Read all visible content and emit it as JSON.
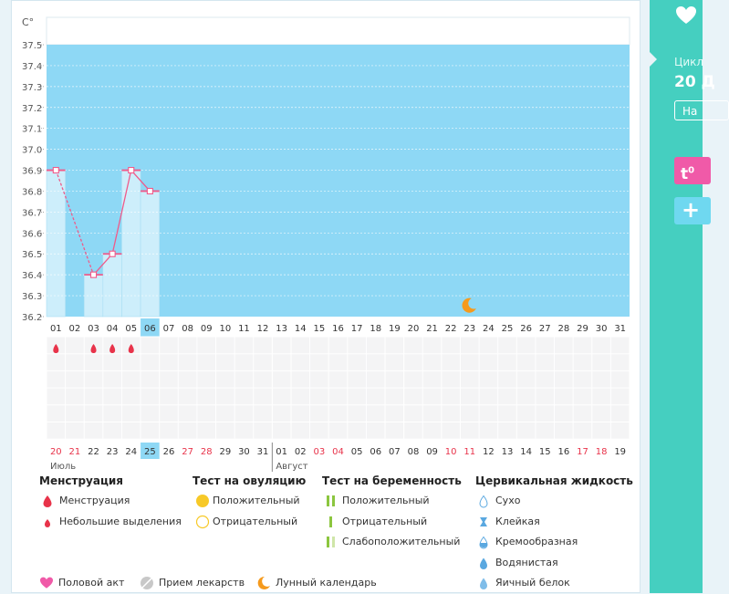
{
  "chart_data": {
    "type": "line",
    "ylabel": "C°",
    "ylim": [
      36.2,
      37.5
    ],
    "y_ticks": [
      "37.5",
      "37.4",
      "37.3",
      "37.2",
      "37.1",
      "37.0",
      "36.9",
      "36.8",
      "36.7",
      "36.6",
      "36.5",
      "36.4",
      "36.3",
      "36.2"
    ],
    "cycle_days": [
      "01",
      "02",
      "03",
      "04",
      "05",
      "06",
      "07",
      "08",
      "09",
      "10",
      "11",
      "12",
      "13",
      "14",
      "15",
      "16",
      "17",
      "18",
      "19",
      "20",
      "21",
      "22",
      "23",
      "24",
      "25",
      "26",
      "27",
      "28",
      "29",
      "30",
      "31"
    ],
    "current_day": "06",
    "temperatures": [
      {
        "day": 1,
        "value": 36.9
      },
      {
        "day": 3,
        "value": 36.4
      },
      {
        "day": 4,
        "value": 36.5
      },
      {
        "day": 5,
        "value": 36.9
      },
      {
        "day": 6,
        "value": 36.8
      }
    ],
    "temperature_links": [
      {
        "from": 1,
        "to": 3,
        "style": "dashed"
      },
      {
        "from": 3,
        "to": 4,
        "style": "solid"
      },
      {
        "from": 4,
        "to": 5,
        "style": "solid"
      },
      {
        "from": 5,
        "to": 6,
        "style": "solid"
      }
    ],
    "menstruation_days": [
      1,
      3,
      4,
      5
    ],
    "moon_day": 23,
    "calendar_dates": [
      {
        "label": "20",
        "red": true
      },
      {
        "label": "21",
        "red": true
      },
      {
        "label": "22",
        "red": false
      },
      {
        "label": "23",
        "red": false
      },
      {
        "label": "24",
        "red": false
      },
      {
        "label": "25",
        "red": false,
        "highlight": true
      },
      {
        "label": "26",
        "red": false
      },
      {
        "label": "27",
        "red": true
      },
      {
        "label": "28",
        "red": true
      },
      {
        "label": "29",
        "red": false
      },
      {
        "label": "30",
        "red": false
      },
      {
        "label": "31",
        "red": false
      },
      {
        "label": "01",
        "red": false
      },
      {
        "label": "02",
        "red": false
      },
      {
        "label": "03",
        "red": true
      },
      {
        "label": "04",
        "red": true
      },
      {
        "label": "05",
        "red": false
      },
      {
        "label": "06",
        "red": false
      },
      {
        "label": "07",
        "red": false
      },
      {
        "label": "08",
        "red": false
      },
      {
        "label": "09",
        "red": false
      },
      {
        "label": "10",
        "red": true
      },
      {
        "label": "11",
        "red": true
      },
      {
        "label": "12",
        "red": false
      },
      {
        "label": "13",
        "red": false
      },
      {
        "label": "14",
        "red": false
      },
      {
        "label": "15",
        "red": false
      },
      {
        "label": "16",
        "red": false
      },
      {
        "label": "17",
        "red": true
      },
      {
        "label": "18",
        "red": true
      },
      {
        "label": "19",
        "red": false
      }
    ],
    "months": [
      {
        "label": "Июль",
        "start_index": 0
      },
      {
        "label": "Август",
        "start_index": 12
      }
    ]
  },
  "colors": {
    "chart_bg": "#8ed8f5",
    "bar": "#cdeefb",
    "line": "#f05a8a",
    "red": "#e8334a",
    "highlight": "#8ed8f5",
    "sidebar": "#45cfc0",
    "pink": "#f05aa8",
    "moon": "#f59a1d",
    "yellow": "#f7c928",
    "green": "#8cc63f",
    "drop": "#5aa8e0"
  },
  "sidebar": {
    "cycle_label": "Цикл",
    "day_text": "20 Д",
    "button_label": "На"
  },
  "legend": {
    "groups": [
      {
        "title": "Менструация",
        "items": [
          {
            "icon": "large-drop-icon",
            "label": "Менструация"
          },
          {
            "icon": "small-drop-icon",
            "label": "Небольшие выделения"
          }
        ]
      },
      {
        "title": "Тест на овуляцию",
        "items": [
          {
            "icon": "filled-circle-icon",
            "label": "Положительный"
          },
          {
            "icon": "empty-circle-icon",
            "label": "Отрицательный"
          }
        ]
      },
      {
        "title": "Тест на беременность",
        "items": [
          {
            "icon": "double-bar-icon",
            "label": "Положительный"
          },
          {
            "icon": "single-bar-icon",
            "label": "Отрицательный"
          },
          {
            "icon": "faint-bar-icon",
            "label": "Слабоположительный"
          }
        ]
      },
      {
        "title": "Цервикальная жидкость",
        "items": [
          {
            "icon": "dry-drop-icon",
            "label": "Сухо"
          },
          {
            "icon": "sticky-icon",
            "label": "Клейкая"
          },
          {
            "icon": "creamy-drop-icon",
            "label": "Кремообразная"
          },
          {
            "icon": "watery-drop-icon",
            "label": "Водянистая"
          },
          {
            "icon": "eggwhite-drop-icon",
            "label": "Яичный белок"
          }
        ]
      }
    ],
    "bottom": [
      {
        "icon": "heart-icon",
        "label": "Половой акт"
      },
      {
        "icon": "pill-icon",
        "label": "Прием лекарств"
      },
      {
        "icon": "moon-icon",
        "label": "Лунный календарь"
      }
    ]
  }
}
